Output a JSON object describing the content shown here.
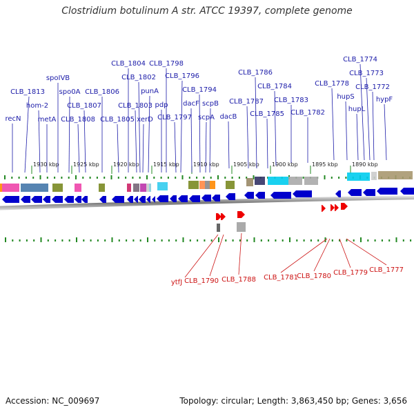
{
  "title": "Clostridium botulinum A str. ATCC 19397, complete genome",
  "footer": {
    "accession": "Accession: NC_009697",
    "summary": "Topology: circular; Length: 3,863,450 bp; Genes: 3,656"
  },
  "colors": {
    "forward_gene": "#0000cc",
    "reverse_gene": "#ee0000",
    "forward_label": "#1a1aa8",
    "reverse_label": "#cc1111",
    "tick": "#228822"
  },
  "scale": {
    "labels": [
      "1930 kbp",
      "1925 kbp",
      "1920 kbp",
      "1915 kbp",
      "1910 kbp",
      "1905 kbp",
      "1900 kbp",
      "1895 kbp",
      "1890 kbp"
    ]
  },
  "forward_genes": [
    "recN",
    "CLB_1813",
    "hom-2",
    "metA",
    "spoIVB",
    "spo0A",
    "CLB_1808",
    "CLB_1807",
    "CLB_1806",
    "CLB_1805",
    "CLB_1804",
    "CLB_1803",
    "CLB_1802",
    "xerD",
    "punA",
    "CLB_1798",
    "pdp",
    "CLB_1797",
    "CLB_1796",
    "dacF",
    "CLB_1794",
    "scpA",
    "scpB",
    "dacB",
    "CLB_1787",
    "CLB_1786",
    "CLB_1785",
    "CLB_1784",
    "CLB_1783",
    "CLB_1782",
    "CLB_1778",
    "hupS",
    "hupL",
    "CLB_1774",
    "CLB_1773",
    "CLB_1772",
    "hypF"
  ],
  "reverse_genes": [
    "ytfJ",
    "CLB_1790",
    "CLB_1788",
    "CLB_1781",
    "CLB_1780",
    "CLB_1779",
    "CLB_1777"
  ]
}
